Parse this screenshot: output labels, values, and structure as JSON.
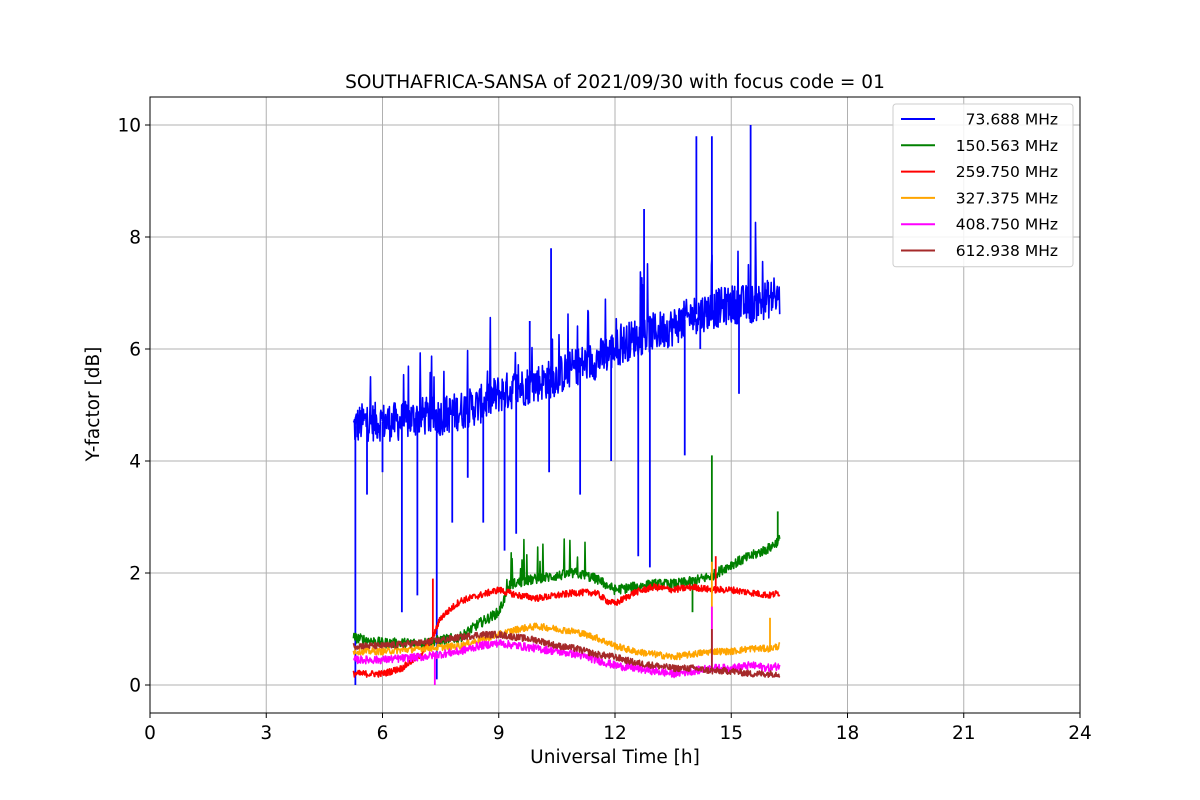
{
  "chart_data": {
    "type": "line",
    "title": "SOUTHAFRICA-SANSA of 2021/09/30 with focus code = 01",
    "xlabel": "Universal Time [h]",
    "ylabel": "Y-factor [dB]",
    "xlim": [
      0,
      24
    ],
    "ylim": [
      -0.5,
      10.5
    ],
    "xticks": [
      0,
      3,
      6,
      9,
      12,
      15,
      18,
      21,
      24
    ],
    "yticks": [
      0,
      2,
      4,
      6,
      8,
      10
    ],
    "grid": true,
    "legend_position": "top-right",
    "series": [
      {
        "name": "73.688 MHz",
        "color": "#0000ff",
        "x": [
          5.25,
          5.5,
          6.0,
          6.5,
          7.0,
          7.5,
          8.0,
          8.5,
          9.0,
          9.5,
          10.0,
          10.5,
          11.0,
          11.5,
          12.0,
          12.5,
          13.0,
          13.5,
          14.0,
          14.5,
          15.0,
          15.5,
          16.0,
          16.25
        ],
        "y": [
          4.6,
          4.7,
          4.7,
          4.7,
          4.8,
          4.8,
          4.9,
          5.0,
          5.2,
          5.3,
          5.4,
          5.5,
          5.7,
          5.8,
          6.0,
          6.2,
          6.3,
          6.4,
          6.6,
          6.7,
          6.8,
          6.8,
          6.9,
          6.9
        ],
        "spikes_down": [
          [
            5.3,
            0.0
          ],
          [
            5.6,
            3.4
          ],
          [
            6.0,
            3.8
          ],
          [
            6.5,
            1.3
          ],
          [
            6.9,
            1.6
          ],
          [
            7.4,
            0.1
          ],
          [
            7.8,
            2.9
          ],
          [
            8.2,
            3.7
          ],
          [
            8.6,
            2.9
          ],
          [
            9.15,
            2.4
          ],
          [
            9.45,
            2.7
          ],
          [
            10.3,
            3.8
          ],
          [
            11.1,
            3.4
          ],
          [
            11.9,
            4.0
          ],
          [
            12.6,
            2.3
          ],
          [
            12.9,
            2.1
          ],
          [
            13.8,
            4.1
          ],
          [
            14.2,
            6.0
          ],
          [
            15.2,
            5.2
          ]
        ],
        "spikes_up": [
          [
            9.8,
            6.5
          ],
          [
            10.35,
            7.8
          ],
          [
            12.75,
            8.5
          ],
          [
            14.1,
            9.8
          ],
          [
            14.5,
            9.8
          ],
          [
            15.5,
            10.0
          ]
        ]
      },
      {
        "name": "150.563 MHz",
        "color": "#008000",
        "x": [
          5.25,
          6.0,
          7.0,
          7.5,
          8.0,
          8.5,
          9.0,
          9.3,
          10.0,
          10.5,
          11.0,
          11.5,
          12.0,
          12.5,
          13.0,
          13.5,
          14.0,
          14.5,
          15.0,
          15.5,
          16.0,
          16.25
        ],
        "y": [
          0.85,
          0.75,
          0.75,
          0.8,
          0.85,
          1.1,
          1.3,
          1.8,
          1.9,
          1.95,
          2.0,
          1.9,
          1.7,
          1.75,
          1.8,
          1.8,
          1.85,
          1.95,
          2.15,
          2.3,
          2.45,
          2.6
        ],
        "spikes_down": [
          [
            14.0,
            1.3
          ]
        ],
        "spikes_up": [
          [
            14.5,
            4.1
          ],
          [
            16.2,
            3.1
          ]
        ]
      },
      {
        "name": "259.750 MHz",
        "color": "#ff0000",
        "x": [
          5.25,
          6.0,
          6.5,
          7.0,
          7.3,
          7.5,
          8.0,
          8.5,
          9.0,
          9.5,
          10.0,
          10.5,
          11.0,
          11.5,
          11.8,
          12.0,
          12.5,
          13.0,
          13.5,
          14.0,
          14.5,
          15.0,
          15.5,
          16.0,
          16.25
        ],
        "y": [
          0.2,
          0.2,
          0.3,
          0.55,
          0.85,
          1.2,
          1.5,
          1.6,
          1.7,
          1.6,
          1.55,
          1.6,
          1.65,
          1.65,
          1.5,
          1.45,
          1.65,
          1.75,
          1.7,
          1.75,
          1.7,
          1.7,
          1.65,
          1.6,
          1.65
        ],
        "spikes_down": [],
        "spikes_up": [
          [
            7.3,
            1.9
          ],
          [
            14.6,
            2.3
          ]
        ]
      },
      {
        "name": "327.375 MHz",
        "color": "#ffa500",
        "x": [
          5.25,
          6.0,
          7.0,
          8.0,
          8.5,
          9.0,
          9.5,
          10.0,
          10.5,
          11.0,
          11.5,
          12.0,
          12.5,
          13.0,
          13.5,
          14.0,
          14.5,
          15.0,
          15.5,
          16.0,
          16.25
        ],
        "y": [
          0.6,
          0.6,
          0.65,
          0.7,
          0.8,
          0.9,
          1.0,
          1.05,
          1.0,
          0.95,
          0.85,
          0.7,
          0.6,
          0.55,
          0.5,
          0.55,
          0.6,
          0.6,
          0.65,
          0.65,
          0.7
        ],
        "spikes_down": [],
        "spikes_up": [
          [
            14.5,
            2.2
          ],
          [
            16.0,
            1.2
          ]
        ]
      },
      {
        "name": "408.750 MHz",
        "color": "#ff00ff",
        "x": [
          5.25,
          6.0,
          7.0,
          8.0,
          8.5,
          9.0,
          9.5,
          10.0,
          10.5,
          11.0,
          11.5,
          12.0,
          12.5,
          13.0,
          13.5,
          14.0,
          14.5,
          15.0,
          15.5,
          16.0,
          16.25
        ],
        "y": [
          0.45,
          0.45,
          0.5,
          0.6,
          0.7,
          0.75,
          0.7,
          0.65,
          0.6,
          0.55,
          0.45,
          0.35,
          0.3,
          0.25,
          0.2,
          0.25,
          0.3,
          0.3,
          0.35,
          0.3,
          0.35
        ],
        "spikes_down": [
          [
            7.35,
            0.0
          ]
        ],
        "spikes_up": [
          [
            14.5,
            1.4
          ]
        ]
      },
      {
        "name": "612.938 MHz",
        "color": "#a52a2a",
        "x": [
          5.25,
          6.0,
          7.0,
          8.0,
          8.5,
          9.0,
          9.5,
          10.0,
          10.5,
          11.0,
          11.5,
          12.0,
          12.5,
          13.0,
          13.5,
          14.0,
          14.5,
          15.0,
          15.5,
          16.0,
          16.25
        ],
        "y": [
          0.7,
          0.7,
          0.75,
          0.85,
          0.9,
          0.9,
          0.85,
          0.8,
          0.7,
          0.65,
          0.55,
          0.5,
          0.4,
          0.35,
          0.3,
          0.3,
          0.25,
          0.25,
          0.2,
          0.2,
          0.2
        ],
        "spikes_down": [],
        "spikes_up": [
          [
            14.5,
            1.0
          ]
        ]
      }
    ]
  }
}
